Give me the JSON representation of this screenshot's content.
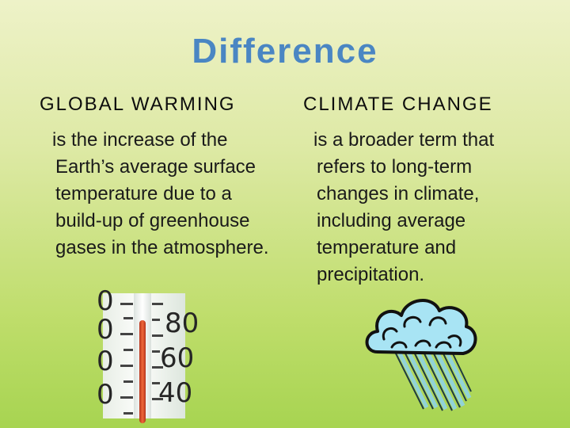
{
  "slide": {
    "title": "Difference",
    "left": {
      "heading": "GLOBAL WARMING",
      "body": "is the increase of the Earth’s average surface temperature due to a build-up of greenhouse gases in the atmosphere.",
      "image": "thermometer-image"
    },
    "right": {
      "heading": "CLIMATE CHANGE",
      "body": "is a broader term that refers to long-term changes in climate, including average temperature and precipitation.",
      "image": "rain-cloud-image"
    }
  },
  "thermometer": {
    "scale_labels": [
      "0",
      "0",
      "0",
      "0",
      "80",
      "60",
      "40"
    ]
  },
  "colors": {
    "title": "#4a86c3",
    "background_top": "#eef2c8",
    "background_bottom": "#a7d451",
    "mercury": "#e0502a",
    "cloud": "#a8e4f4"
  }
}
